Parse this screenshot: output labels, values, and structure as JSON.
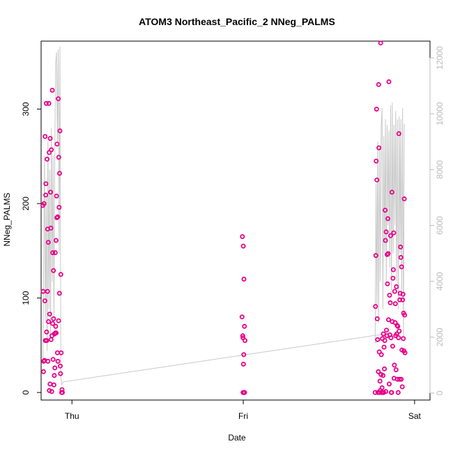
{
  "chart_data": {
    "type": "scatter",
    "title": "ATOM3 Northeast_Pacific_2 NNeg_PALMS",
    "xlabel": "Date",
    "ylabel": "NNeg_PALMS",
    "x_ticks": [
      {
        "label": "Thu",
        "value": 0.0
      },
      {
        "label": "Fri",
        "value": 1.0
      },
      {
        "label": "Sat",
        "value": 2.0
      }
    ],
    "xlim": [
      -0.18,
      2.09
    ],
    "ylim": [
      -8,
      372
    ],
    "y_ticks": [
      0,
      100,
      200,
      300
    ],
    "y2lim": [
      -250,
      12600
    ],
    "y2_ticks": [
      0,
      2000,
      4000,
      6000,
      8000,
      10000,
      12000
    ],
    "colors": {
      "points": "#E8008A",
      "line": "#c8c8c8",
      "axis": "#000000",
      "right_axis": "#bbbbbb"
    },
    "series": [
      {
        "type": "scatter",
        "points": [
          [
            -0.17,
            198
          ],
          [
            -0.168,
            107
          ],
          [
            -0.166,
            22
          ],
          [
            -0.165,
            33
          ],
          [
            -0.163,
            200
          ],
          [
            -0.16,
            34
          ],
          [
            -0.158,
            97
          ],
          [
            -0.157,
            271
          ],
          [
            -0.155,
            55
          ],
          [
            -0.153,
            209
          ],
          [
            -0.152,
            221
          ],
          [
            -0.15,
            306
          ],
          [
            -0.148,
            64
          ],
          [
            -0.147,
            55
          ],
          [
            -0.145,
            247
          ],
          [
            -0.143,
            107
          ],
          [
            -0.142,
            173
          ],
          [
            -0.14,
            33
          ],
          [
            -0.138,
            159
          ],
          [
            -0.137,
            75
          ],
          [
            -0.135,
            306
          ],
          [
            -0.133,
            254
          ],
          [
            -0.132,
            2
          ],
          [
            -0.13,
            83
          ],
          [
            -0.128,
            9
          ],
          [
            -0.127,
            269
          ],
          [
            -0.125,
            212
          ],
          [
            -0.123,
            174
          ],
          [
            -0.122,
            56
          ],
          [
            -0.12,
            257
          ],
          [
            -0.118,
            1
          ],
          [
            -0.117,
            60
          ],
          [
            -0.115,
            320
          ],
          [
            -0.113,
            73
          ],
          [
            -0.112,
            148
          ],
          [
            -0.11,
            35
          ],
          [
            -0.108,
            129
          ],
          [
            -0.107,
            78
          ],
          [
            -0.105,
            8
          ],
          [
            -0.103,
            18
          ],
          [
            -0.102,
            62
          ],
          [
            -0.1,
            26
          ],
          [
            -0.098,
            148
          ],
          [
            -0.097,
            63
          ],
          [
            -0.095,
            70
          ],
          [
            -0.093,
            161
          ],
          [
            -0.092,
            63
          ],
          [
            -0.09,
            208
          ],
          [
            -0.088,
            185
          ],
          [
            -0.087,
            263
          ],
          [
            -0.085,
            42
          ],
          [
            -0.083,
            186
          ],
          [
            -0.082,
            33
          ],
          [
            -0.08,
            311
          ],
          [
            -0.078,
            76
          ],
          [
            -0.077,
            249
          ],
          [
            -0.075,
            196
          ],
          [
            -0.073,
            105
          ],
          [
            -0.072,
            232
          ],
          [
            -0.07,
            277
          ],
          [
            -0.068,
            28
          ],
          [
            -0.067,
            20
          ],
          [
            -0.065,
            125
          ],
          [
            -0.063,
            42
          ],
          [
            -0.06,
            0
          ],
          [
            -0.058,
            3
          ],
          [
            -0.056,
            0
          ],
          [
            0.995,
            165
          ],
          [
            0.993,
            80
          ],
          [
            0.997,
            60
          ],
          [
            0.999,
            0
          ],
          [
            1.0,
            155
          ],
          [
            1.001,
            30
          ],
          [
            1.003,
            40
          ],
          [
            1.004,
            120
          ],
          [
            1.005,
            0
          ],
          [
            1.007,
            70
          ],
          [
            1.008,
            0
          ],
          [
            1.01,
            55
          ],
          [
            0.998,
            58
          ],
          [
            1.002,
            0
          ],
          [
            1.77,
            0
          ],
          [
            1.772,
            91
          ],
          [
            1.774,
            145
          ],
          [
            1.776,
            245
          ],
          [
            1.778,
            300
          ],
          [
            1.78,
            225
          ],
          [
            1.782,
            78
          ],
          [
            1.784,
            56
          ],
          [
            1.786,
            0
          ],
          [
            1.788,
            22
          ],
          [
            1.79,
            326
          ],
          [
            1.792,
            259
          ],
          [
            1.794,
            43
          ],
          [
            1.796,
            0
          ],
          [
            1.798,
            12
          ],
          [
            1.8,
            2
          ],
          [
            1.802,
            370
          ],
          [
            1.804,
            19
          ],
          [
            1.806,
            40
          ],
          [
            1.808,
            0
          ],
          [
            1.81,
            5
          ],
          [
            1.812,
            57
          ],
          [
            1.814,
            0
          ],
          [
            1.816,
            18
          ],
          [
            1.818,
            62
          ],
          [
            1.82,
            0
          ],
          [
            1.822,
            48
          ],
          [
            1.824,
            25
          ],
          [
            1.826,
            55
          ],
          [
            1.828,
            193
          ],
          [
            1.83,
            161
          ],
          [
            1.832,
            1
          ],
          [
            1.834,
            170
          ],
          [
            1.836,
            66
          ],
          [
            1.838,
            60
          ],
          [
            1.84,
            146
          ],
          [
            1.842,
            115
          ],
          [
            1.844,
            184
          ],
          [
            1.846,
            147
          ],
          [
            1.848,
            77
          ],
          [
            1.85,
            329
          ],
          [
            1.852,
            9
          ],
          [
            1.854,
            103
          ],
          [
            1.856,
            61
          ],
          [
            1.858,
            95
          ],
          [
            1.86,
            166
          ],
          [
            1.862,
            58
          ],
          [
            1.864,
            0
          ],
          [
            1.866,
            0
          ],
          [
            1.868,
            212
          ],
          [
            1.87,
            75
          ],
          [
            1.872,
            49
          ],
          [
            1.874,
            121
          ],
          [
            1.876,
            130
          ],
          [
            1.878,
            169
          ],
          [
            1.88,
            15
          ],
          [
            1.882,
            29
          ],
          [
            1.884,
            107
          ],
          [
            1.886,
            74
          ],
          [
            1.888,
            94
          ],
          [
            1.89,
            60
          ],
          [
            1.892,
            24
          ],
          [
            1.894,
            112
          ],
          [
            1.896,
            62
          ],
          [
            1.898,
            71
          ],
          [
            1.9,
            14
          ],
          [
            1.902,
            70
          ],
          [
            1.904,
            0
          ],
          [
            1.906,
            58
          ],
          [
            1.908,
            274
          ],
          [
            1.91,
            65
          ],
          [
            1.912,
            14
          ],
          [
            1.914,
            98
          ],
          [
            1.916,
            105
          ],
          [
            1.918,
            154
          ],
          [
            1.92,
            143
          ],
          [
            1.922,
            14
          ],
          [
            1.924,
            133
          ],
          [
            1.926,
            45
          ],
          [
            1.928,
            6
          ],
          [
            1.93,
            98
          ],
          [
            1.932,
            104
          ],
          [
            1.934,
            57
          ],
          [
            1.936,
            84
          ],
          [
            1.938,
            44
          ],
          [
            1.94,
            205
          ],
          [
            1.942,
            82
          ],
          [
            1.944,
            42
          ]
        ]
      },
      {
        "type": "line",
        "axis": "right",
        "points": [
          [
            -0.17,
            1100
          ],
          [
            -0.16,
            8500
          ],
          [
            -0.155,
            2500
          ],
          [
            -0.15,
            7000
          ],
          [
            -0.145,
            1500
          ],
          [
            -0.14,
            9000
          ],
          [
            -0.135,
            3000
          ],
          [
            -0.13,
            8000
          ],
          [
            -0.125,
            2000
          ],
          [
            -0.12,
            9500
          ],
          [
            -0.115,
            4000
          ],
          [
            -0.11,
            8500
          ],
          [
            -0.105,
            2500
          ],
          [
            -0.1,
            9000
          ],
          [
            -0.095,
            11800
          ],
          [
            -0.09,
            12200
          ],
          [
            -0.085,
            9000
          ],
          [
            -0.08,
            12300
          ],
          [
            -0.075,
            5000
          ],
          [
            -0.07,
            12400
          ],
          [
            -0.065,
            600
          ],
          [
            -0.06,
            300
          ],
          [
            -0.05,
            400
          ],
          [
            1.81,
            2100
          ],
          [
            1.84,
            2000
          ],
          [
            1.92,
            2200
          ],
          [
            1.77,
            1800
          ],
          [
            1.775,
            7500
          ],
          [
            1.78,
            3000
          ],
          [
            1.785,
            9000
          ],
          [
            1.79,
            2500
          ],
          [
            1.795,
            8800
          ],
          [
            1.8,
            4000
          ],
          [
            1.805,
            9500
          ],
          [
            1.81,
            10200
          ],
          [
            1.815,
            3000
          ],
          [
            1.82,
            9200
          ],
          [
            1.825,
            5000
          ],
          [
            1.83,
            9800
          ],
          [
            1.835,
            4000
          ],
          [
            1.84,
            9600
          ],
          [
            1.845,
            6000
          ],
          [
            1.85,
            9400
          ],
          [
            1.855,
            4500
          ],
          [
            1.86,
            10300
          ],
          [
            1.865,
            3500
          ],
          [
            1.87,
            10400
          ],
          [
            1.875,
            5000
          ],
          [
            1.88,
            9600
          ],
          [
            1.885,
            6000
          ],
          [
            1.89,
            10100
          ],
          [
            1.895,
            4000
          ],
          [
            1.9,
            9800
          ],
          [
            1.905,
            3000
          ],
          [
            1.91,
            9900
          ],
          [
            1.915,
            5000
          ],
          [
            1.92,
            9800
          ],
          [
            1.925,
            3500
          ],
          [
            1.93,
            10200
          ],
          [
            1.935,
            2000
          ],
          [
            1.94,
            9600
          ],
          [
            1.945,
            9600
          ]
        ]
      }
    ]
  }
}
